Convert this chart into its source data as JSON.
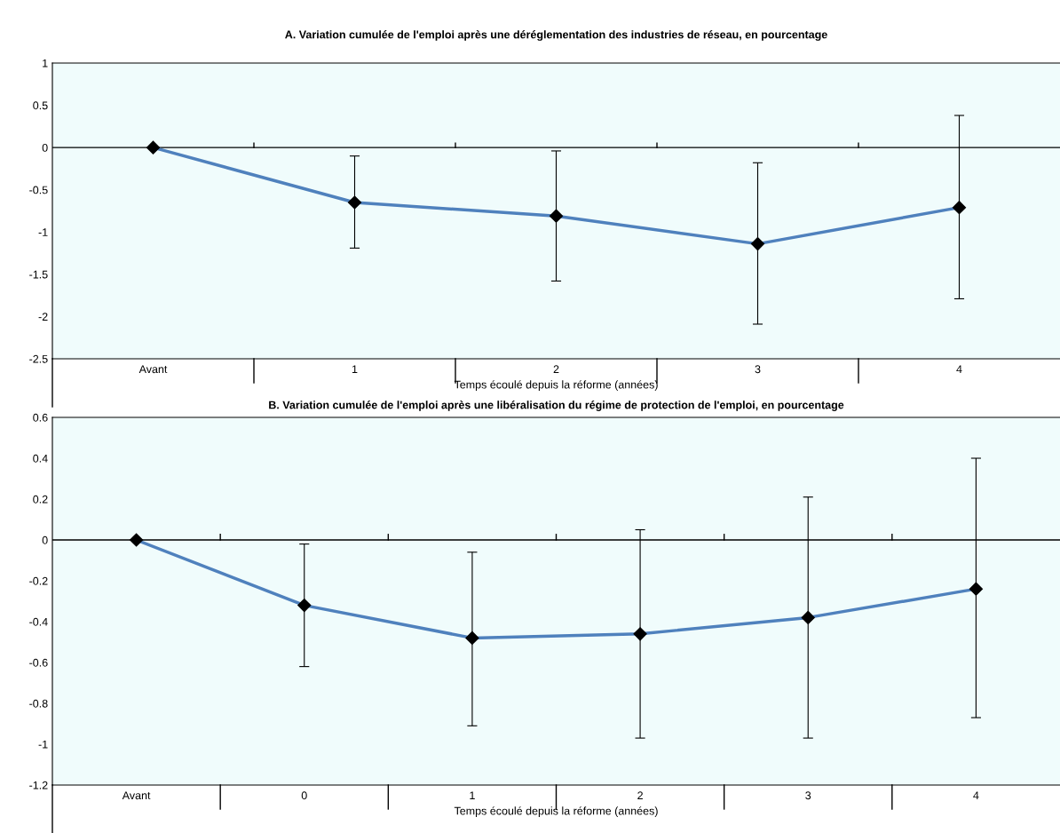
{
  "chart_data": [
    {
      "type": "line",
      "title": "A. Variation cumulée de l'emploi après une déréglementation des industries de réseau, en pourcentage",
      "xlabel": "Temps écoulé depuis la réforme (années)",
      "categories": [
        "Avant",
        "1",
        "2",
        "3",
        "4"
      ],
      "series": [
        {
          "color": "#4f81bd",
          "values": [
            0,
            -0.65,
            -0.81,
            -1.14,
            -0.71
          ],
          "errors": [
            null,
            [
              -1.19,
              -0.1
            ],
            [
              -1.58,
              -0.04
            ],
            [
              -2.09,
              -0.18
            ],
            [
              -1.79,
              0.38
            ]
          ]
        }
      ],
      "ylim": [
        -2.5,
        1
      ],
      "yticks": [
        -2.5,
        -2,
        -1.5,
        -1,
        -0.5,
        0,
        0.5,
        1
      ],
      "ref_lines": [
        {
          "axis": "y",
          "value": 0,
          "color": "#000000"
        }
      ],
      "marker": "diamond",
      "grid": false,
      "legend": false
    },
    {
      "type": "line",
      "title": "B. Variation cumulée de l'emploi après une libéralisation du régime de protection de l'emploi, en pourcentage",
      "xlabel": "Temps écoulé depuis la réforme (années)",
      "categories": [
        "Avant",
        "0",
        "1",
        "2",
        "3",
        "4"
      ],
      "series": [
        {
          "color": "#4f81bd",
          "values": [
            0,
            -0.32,
            -0.48,
            -0.46,
            -0.38,
            -0.24
          ],
          "errors": [
            null,
            [
              -0.62,
              -0.02
            ],
            [
              -0.91,
              -0.06
            ],
            [
              -0.97,
              0.05
            ],
            [
              -0.97,
              0.21
            ],
            [
              -0.87,
              0.4
            ]
          ]
        }
      ],
      "ylim": [
        -1.2,
        0.6
      ],
      "yticks": [
        -1.2,
        -1,
        -0.8,
        -0.6,
        -0.4,
        -0.2,
        0,
        0.2,
        0.4,
        0.6
      ],
      "ref_lines": [
        {
          "axis": "y",
          "value": 0,
          "color": "#000000"
        }
      ],
      "marker": "diamond",
      "grid": false,
      "legend": false
    }
  ]
}
